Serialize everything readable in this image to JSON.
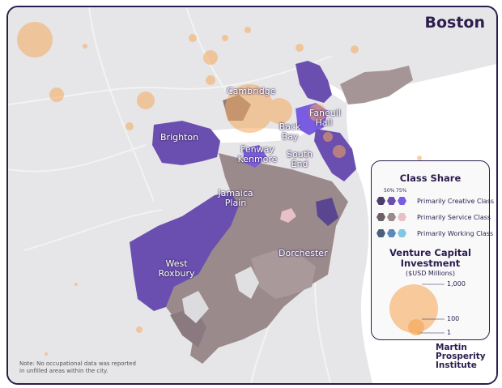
{
  "title": "Boston",
  "colors": {
    "frame": "#2b1d4d",
    "creative_50": "#6a4fb0",
    "creative_75": "#7a5ce0",
    "service": "#9a8a8c",
    "service_light": "#e8c0c8",
    "working": "#7ec8e3",
    "bubble": "#f5a95c",
    "water": "#ffffff",
    "land": "#e6e6e8"
  },
  "places": {
    "cambridge": "Cambridge",
    "brighton": "Brighton",
    "faneuil_hall": "Faneuil Hall",
    "back_bay": "Back Bay",
    "fenway": "Fenway Kenmore",
    "south_end": "South End",
    "jamaica_plain": "Jamaica Plain",
    "dorchester": "Dorchester",
    "west_roxbury": "West Roxbury"
  },
  "legend": {
    "class_share_title": "Class Share",
    "pct_50": "50%",
    "pct_75": "75%",
    "rows": [
      {
        "label": "Primarily Creative Class",
        "colors": [
          "#4b3d6a",
          "#6a4fb0",
          "#7a5ce0"
        ]
      },
      {
        "label": "Primarily Service Class",
        "colors": [
          "#6b6066",
          "#9a8a8c",
          "#e8c0c8"
        ]
      },
      {
        "label": "Primarily Working Class",
        "colors": [
          "#48607a",
          "#5a8ab8",
          "#7ec8e3"
        ]
      }
    ],
    "vc_title": "Venture Capital Investment",
    "vc_title_line1": "Venture Capital",
    "vc_title_line2": "Investment",
    "vc_unit": "($USD Millions)",
    "vc_values": [
      "1,000",
      "100",
      "1"
    ]
  },
  "note": "Note: No occupational data was reported in unfilled areas within the city.",
  "note_line1": "Note: No occupational data was reported",
  "note_line2": "in unfilled areas within the city.",
  "brand": {
    "line1": "Martin",
    "line2": "Prosperity",
    "line3": "Institute"
  }
}
